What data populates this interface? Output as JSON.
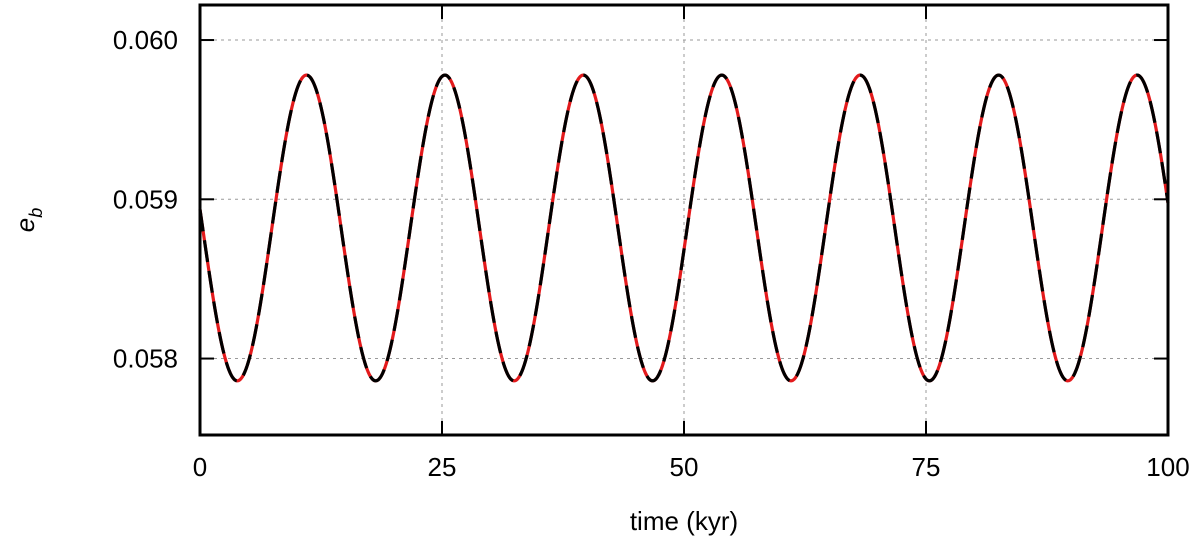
{
  "chart_data": {
    "type": "line",
    "title": "",
    "xlabel": "time (kyr)",
    "ylabel_base": "e",
    "ylabel_sub": "b",
    "xlim": [
      0,
      100
    ],
    "ylim": [
      0.05752,
      0.06022
    ],
    "xticks": [
      0,
      25,
      50,
      75,
      100
    ],
    "yticks": [
      0.058,
      0.059,
      0.06
    ],
    "ytick_labels": [
      "0.058",
      "0.059",
      "0.060"
    ],
    "grid": true,
    "series": [
      {
        "color": "#e31a1c",
        "style": "solid",
        "model": "cosine",
        "mean": 0.05882,
        "amplitude": 0.00096,
        "period_kyr": 14.3,
        "phase_kyr": 11.0
      },
      {
        "color": "#000000",
        "style": "dashed",
        "model": "cosine",
        "mean": 0.05882,
        "amplitude": 0.00096,
        "period_kyr": 14.3,
        "phase_kyr": 11.0
      }
    ],
    "extrema": {
      "maxima_x": [
        11.0,
        25.3,
        39.6,
        53.9,
        68.2,
        82.5,
        96.8
      ],
      "minima_x": [
        3.85,
        18.15,
        32.45,
        46.75,
        61.05,
        75.35,
        89.65
      ],
      "max_y": 0.05978,
      "min_y": 0.05786
    }
  }
}
